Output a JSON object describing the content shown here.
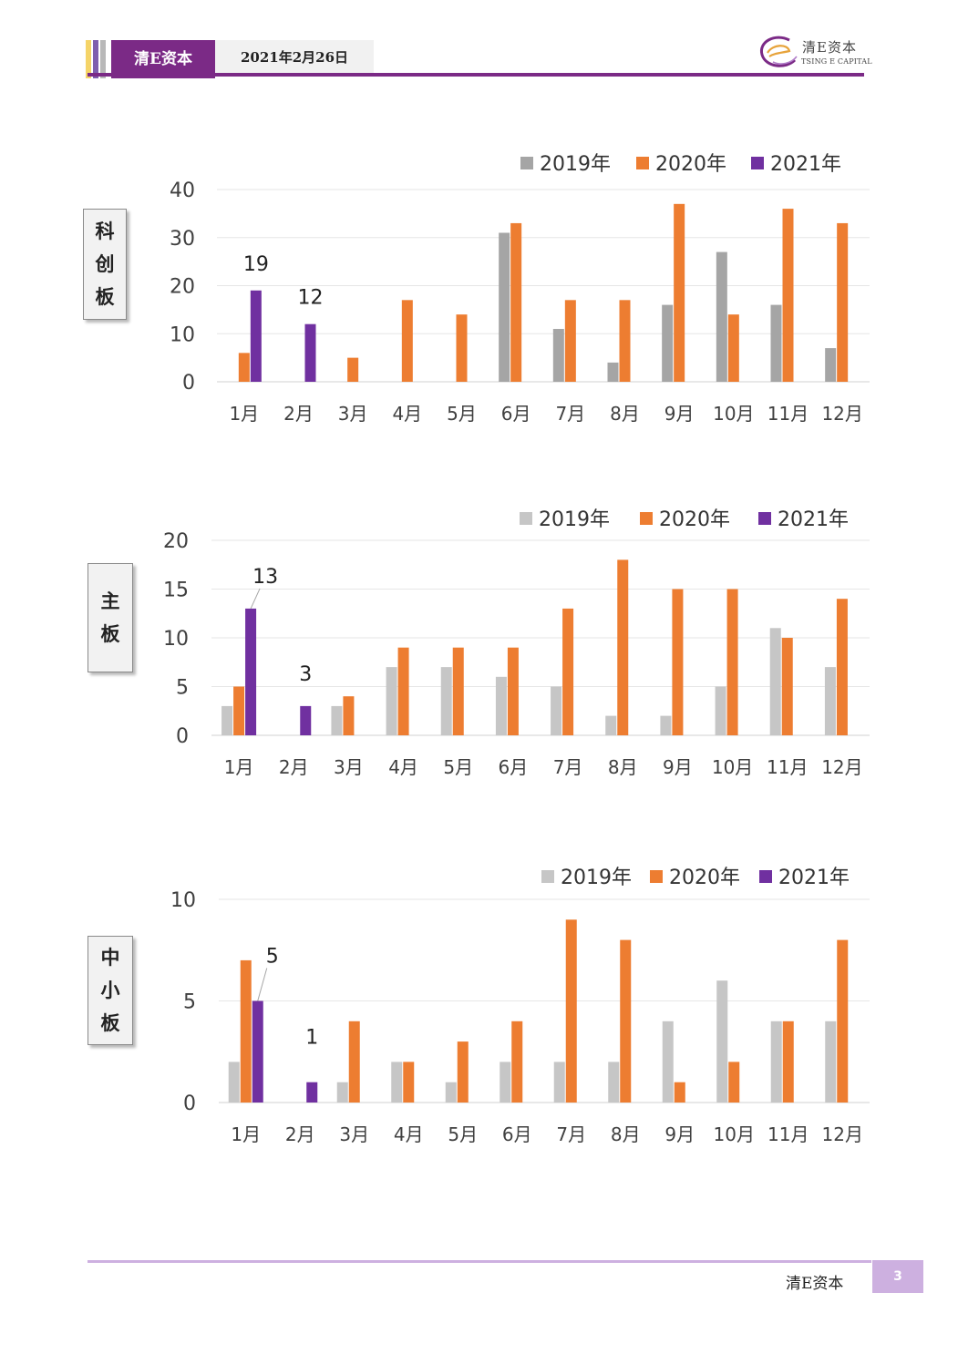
{
  "header": {
    "brand": "清E资本",
    "date": "2021年2月26日",
    "logo_cn": "清E资本",
    "logo_en": "TSING E CAPITAL"
  },
  "colors": {
    "purple": "#7030a0",
    "orange": "#ed7d31",
    "gray_dark": "#a5a5a5",
    "gray_light": "#c6c6c6",
    "header_purple": "#7b2a86",
    "footer_lilac": "#cdb0e0"
  },
  "footer": {
    "brand": "清E资本",
    "page_number": "3"
  },
  "chart_data": [
    {
      "type": "bar",
      "board_label": [
        "科",
        "创",
        "板"
      ],
      "categories": [
        "1月",
        "2月",
        "3月",
        "4月",
        "5月",
        "6月",
        "7月",
        "8月",
        "9月",
        "10月",
        "11月",
        "12月"
      ],
      "ylim": [
        0,
        40
      ],
      "yticks": [
        0,
        10,
        20,
        30,
        40
      ],
      "grid": true,
      "legend_position": "top-right",
      "series": [
        {
          "name": "2019年",
          "color": "#a5a5a5",
          "values": [
            0,
            0,
            0,
            0,
            0,
            31,
            11,
            4,
            16,
            27,
            16,
            7
          ]
        },
        {
          "name": "2020年",
          "color": "#ed7d31",
          "values": [
            6,
            0,
            5,
            17,
            14,
            33,
            17,
            17,
            37,
            14,
            36,
            33
          ]
        },
        {
          "name": "2021年",
          "color": "#7030a0",
          "values": [
            19,
            12,
            null,
            null,
            null,
            null,
            null,
            null,
            null,
            null,
            null,
            null
          ]
        }
      ],
      "data_labels": [
        {
          "series": 2,
          "index": 0,
          "text": "19"
        },
        {
          "series": 2,
          "index": 1,
          "text": "12"
        }
      ]
    },
    {
      "type": "bar",
      "board_label": [
        "主",
        "板"
      ],
      "categories": [
        "1月",
        "2月",
        "3月",
        "4月",
        "5月",
        "6月",
        "7月",
        "8月",
        "9月",
        "10月",
        "11月",
        "12月"
      ],
      "ylim": [
        0,
        20
      ],
      "yticks": [
        0,
        5,
        10,
        15,
        20
      ],
      "grid": true,
      "legend_position": "top-right",
      "series": [
        {
          "name": "2019年",
          "color": "#c6c6c6",
          "values": [
            3,
            0,
            3,
            7,
            7,
            6,
            5,
            2,
            2,
            5,
            11,
            7
          ]
        },
        {
          "name": "2020年",
          "color": "#ed7d31",
          "values": [
            5,
            0,
            4,
            9,
            9,
            9,
            13,
            18,
            15,
            15,
            10,
            14
          ]
        },
        {
          "name": "2021年",
          "color": "#7030a0",
          "values": [
            13,
            3,
            null,
            null,
            null,
            null,
            null,
            null,
            null,
            null,
            null,
            null
          ]
        }
      ],
      "data_labels": [
        {
          "series": 2,
          "index": 0,
          "text": "13"
        },
        {
          "series": 2,
          "index": 1,
          "text": "3"
        }
      ]
    },
    {
      "type": "bar",
      "board_label": [
        "中",
        "小",
        "板"
      ],
      "categories": [
        "1月",
        "2月",
        "3月",
        "4月",
        "5月",
        "6月",
        "7月",
        "8月",
        "9月",
        "10月",
        "11月",
        "12月"
      ],
      "ylim": [
        0,
        10
      ],
      "yticks": [
        0,
        5,
        10
      ],
      "grid": true,
      "legend_position": "top-right",
      "series": [
        {
          "name": "2019年",
          "color": "#c6c6c6",
          "values": [
            2,
            0,
            1,
            2,
            1,
            2,
            2,
            2,
            4,
            6,
            4,
            4
          ]
        },
        {
          "name": "2020年",
          "color": "#ed7d31",
          "values": [
            7,
            0,
            4,
            2,
            3,
            4,
            9,
            8,
            1,
            2,
            4,
            8
          ]
        },
        {
          "name": "2021年",
          "color": "#7030a0",
          "values": [
            5,
            1,
            null,
            null,
            null,
            null,
            null,
            null,
            null,
            null,
            null,
            null
          ]
        }
      ],
      "data_labels": [
        {
          "series": 2,
          "index": 0,
          "text": "5"
        },
        {
          "series": 2,
          "index": 1,
          "text": "1"
        }
      ]
    }
  ]
}
